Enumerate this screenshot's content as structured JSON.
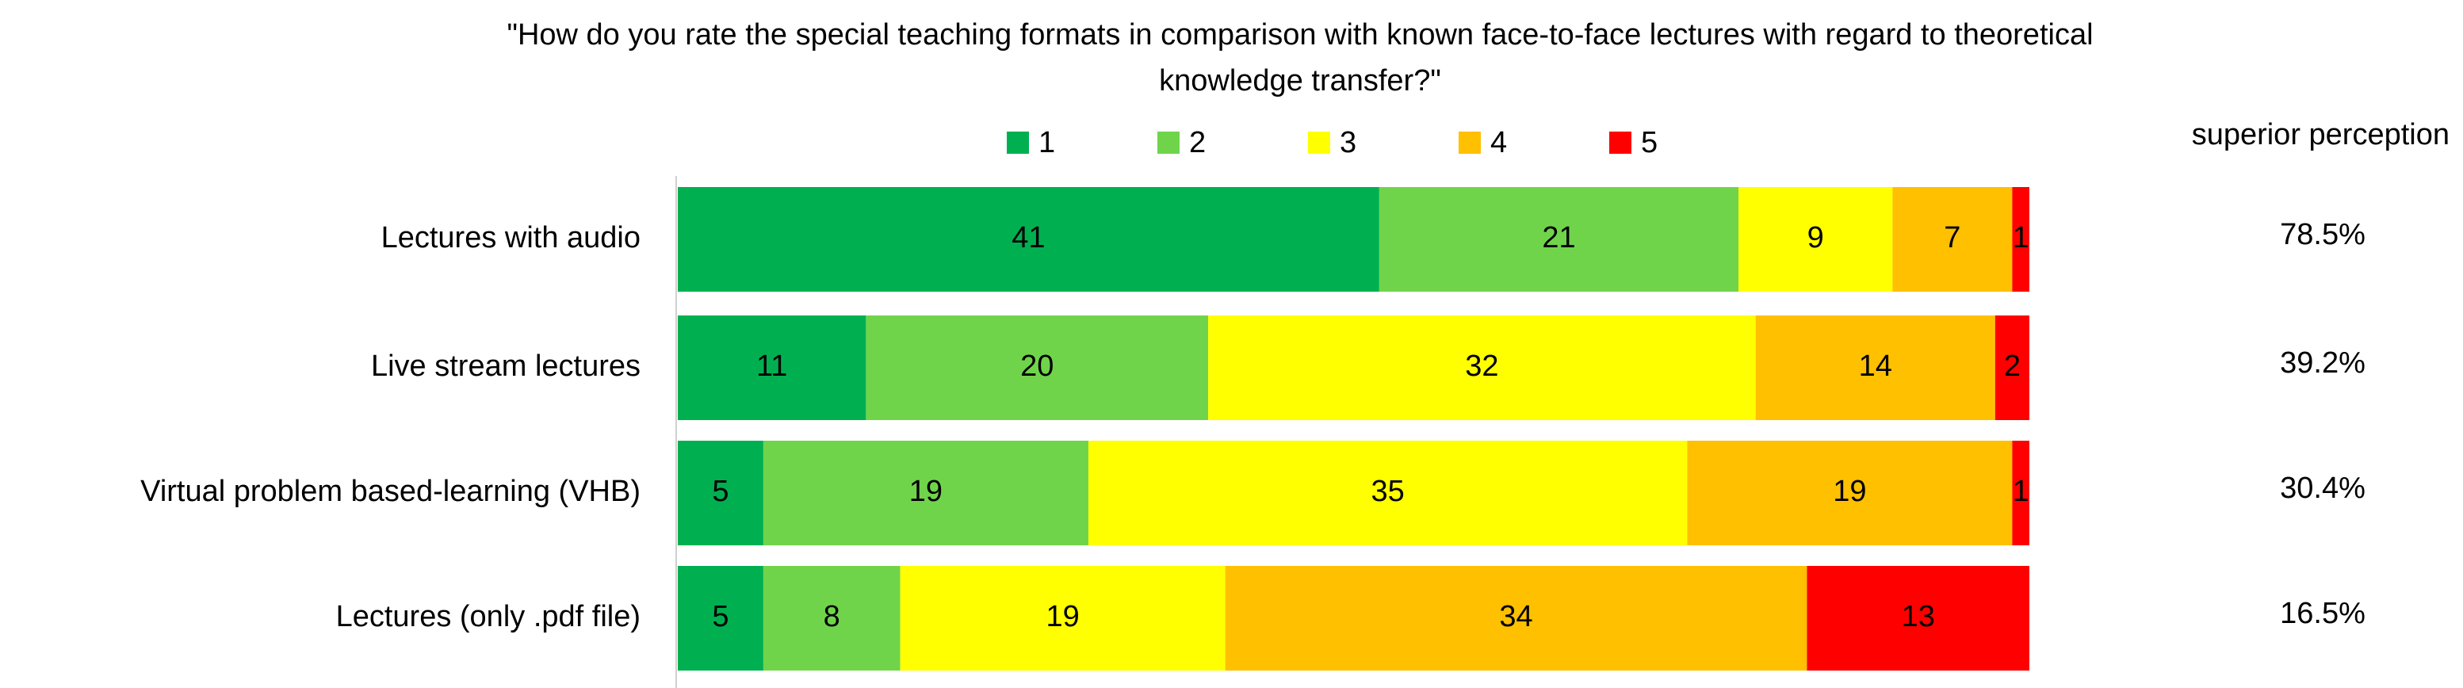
{
  "chart_data": {
    "type": "stacked_bar_horizontal",
    "title_lines": [
      "\"How do you rate the special teaching formats in comparison with known face-to-face lectures with regard to theoretical",
      "knowledge transfer?\""
    ],
    "categories": [
      "Lectures with audio",
      "Live stream lectures",
      "Virtual problem based-learning (VHB)",
      "Lectures (only .pdf file)"
    ],
    "series": [
      {
        "name": "1",
        "color": "#00b050",
        "values": [
          41,
          11,
          5,
          5
        ]
      },
      {
        "name": "2",
        "color": "#70d44b",
        "values": [
          21,
          20,
          19,
          8
        ]
      },
      {
        "name": "3",
        "color": "#ffff00",
        "values": [
          9,
          32,
          35,
          19
        ]
      },
      {
        "name": "4",
        "color": "#ffc000",
        "values": [
          7,
          14,
          19,
          34
        ]
      },
      {
        "name": "5",
        "color": "#ff0000",
        "values": [
          1,
          2,
          1,
          13
        ]
      }
    ],
    "superior_perception": {
      "label": "superior perception",
      "values": [
        78.5,
        39.2,
        30.4,
        16.5
      ],
      "value_labels": [
        "78.5%",
        "39.2%",
        "30.4%",
        "16.5%"
      ]
    }
  }
}
